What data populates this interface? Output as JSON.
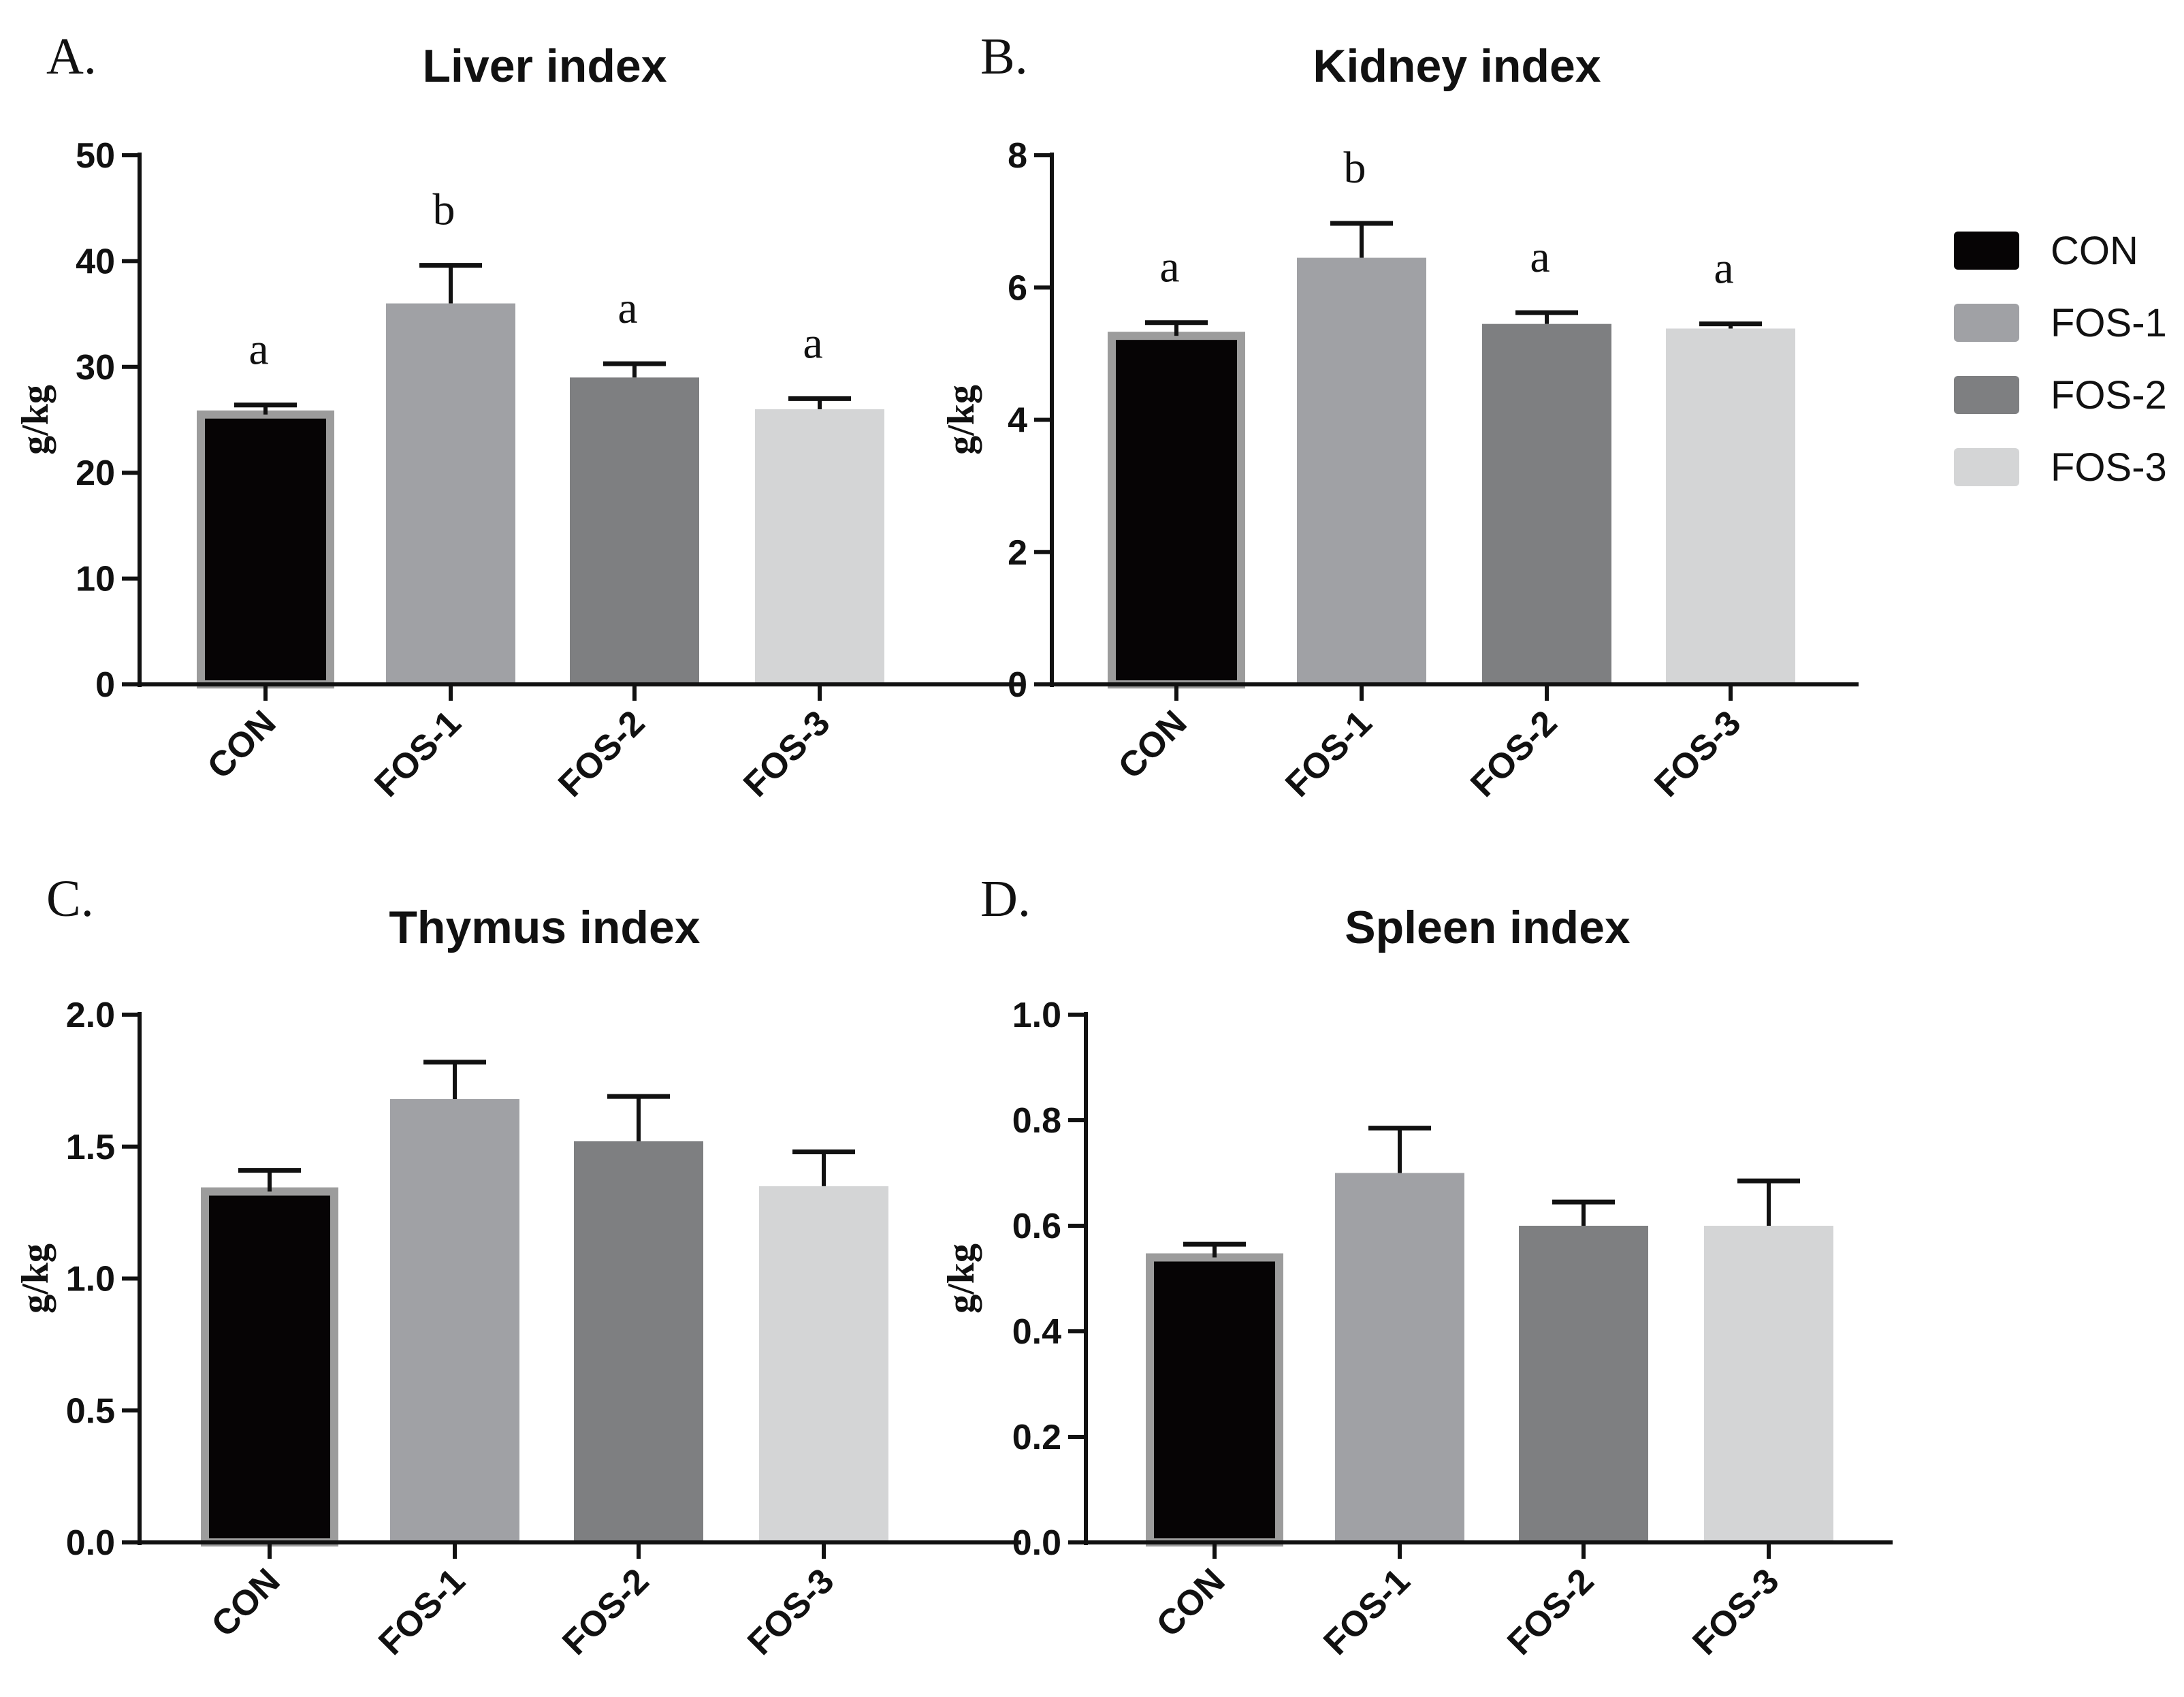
{
  "legend": [
    {
      "label": "CON",
      "color": "#060405"
    },
    {
      "label": "FOS-1",
      "color": "#a0a1a5"
    },
    {
      "label": "FOS-2",
      "color": "#7e7f81"
    },
    {
      "label": "FOS-3",
      "color": "#d4d5d6"
    }
  ],
  "chart_data": [
    {
      "panel": "A.",
      "type": "bar",
      "title": "Liver index",
      "xlabel": "",
      "ylabel": "g/kg",
      "ylim": [
        0,
        50
      ],
      "yticks": [
        0,
        10,
        20,
        30,
        40,
        50
      ],
      "ytick_labels": [
        "0",
        "10",
        "20",
        "30",
        "40",
        "50"
      ],
      "categories": [
        "CON",
        "FOS-1",
        "FOS-2",
        "FOS-3"
      ],
      "values": [
        25.5,
        36,
        29,
        26
      ],
      "errors": [
        0.9,
        3.6,
        1.3,
        1.0
      ],
      "significance": [
        "a",
        "b",
        "a",
        "a"
      ]
    },
    {
      "panel": "B.",
      "type": "bar",
      "title": "Kidney index",
      "xlabel": "",
      "ylabel": "g/kg",
      "ylim": [
        0,
        8
      ],
      "yticks": [
        0,
        2,
        4,
        6,
        8
      ],
      "ytick_labels": [
        "0",
        "2",
        "4",
        "6",
        "8"
      ],
      "categories": [
        "CON",
        "FOS-1",
        "FOS-2",
        "FOS-3"
      ],
      "values": [
        5.27,
        6.45,
        5.45,
        5.38
      ],
      "errors": [
        0.2,
        0.52,
        0.17,
        0.07
      ],
      "significance": [
        "a",
        "b",
        "a",
        "a"
      ]
    },
    {
      "panel": "C.",
      "type": "bar",
      "title": "Thymus index",
      "xlabel": "",
      "ylabel": "g/kg",
      "ylim": [
        0,
        2.0
      ],
      "yticks": [
        0,
        0.5,
        1.0,
        1.5,
        2.0
      ],
      "ytick_labels": [
        "0.0",
        "0.5",
        "1.0",
        "1.5",
        "2.0"
      ],
      "categories": [
        "CON",
        "FOS-1",
        "FOS-2",
        "FOS-3"
      ],
      "values": [
        1.33,
        1.68,
        1.52,
        1.35
      ],
      "errors": [
        0.08,
        0.14,
        0.17,
        0.13
      ],
      "significance": [
        "",
        "",
        "",
        ""
      ]
    },
    {
      "panel": "D.",
      "type": "bar",
      "title": "Spleen index",
      "xlabel": "",
      "ylabel": "g/kg",
      "ylim": [
        0,
        1.0
      ],
      "yticks": [
        0,
        0.2,
        0.4,
        0.6,
        0.8,
        1.0
      ],
      "ytick_labels": [
        "0.0",
        "0.2",
        "0.4",
        "0.6",
        "0.8",
        "1.0"
      ],
      "categories": [
        "CON",
        "FOS-1",
        "FOS-2",
        "FOS-3"
      ],
      "values": [
        0.54,
        0.7,
        0.6,
        0.6
      ],
      "errors": [
        0.025,
        0.085,
        0.045,
        0.085
      ],
      "significance": [
        "",
        "",
        "",
        ""
      ]
    }
  ]
}
